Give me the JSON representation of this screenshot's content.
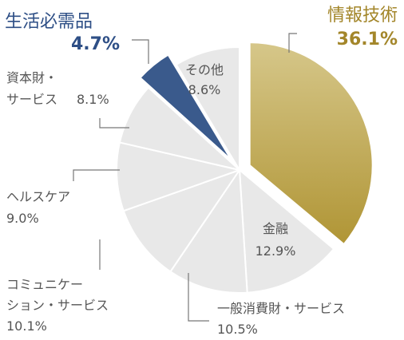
{
  "chart_data": {
    "type": "pie",
    "title": "",
    "legend": "none",
    "slices": [
      {
        "name": "情報技術",
        "label_lines": [
          "情報技術"
        ],
        "value_text": "36.1%",
        "value": 36.1,
        "exploded": true,
        "emphasis": true,
        "color": "#b09535"
      },
      {
        "name": "金融",
        "label_lines": [
          "金融"
        ],
        "value_text": "12.9%",
        "value": 12.9,
        "exploded": false,
        "emphasis": false,
        "color": "#e8e8e8"
      },
      {
        "name": "一般消費財・サービス",
        "label_lines": [
          "一般消費財・サービス"
        ],
        "value_text": "10.5%",
        "value": 10.5,
        "exploded": false,
        "emphasis": false,
        "color": "#e8e8e8"
      },
      {
        "name": "コミュニケーション・サービス",
        "label_lines": [
          "コミュニケー",
          "ション・サービス"
        ],
        "value_text": "10.1%",
        "value": 10.1,
        "exploded": false,
        "emphasis": false,
        "color": "#e8e8e8"
      },
      {
        "name": "ヘルスケア",
        "label_lines": [
          "ヘルスケア"
        ],
        "value_text": "9.0%",
        "value": 9.0,
        "exploded": false,
        "emphasis": false,
        "color": "#e8e8e8"
      },
      {
        "name": "資本財・サービス",
        "label_lines": [
          "資本財・",
          "サービス"
        ],
        "value_text": "8.1%",
        "value": 8.1,
        "exploded": false,
        "emphasis": false,
        "color": "#e8e8e8"
      },
      {
        "name": "生活必需品",
        "label_lines": [
          "生活必需品"
        ],
        "value_text": "4.7%",
        "value": 4.7,
        "exploded": true,
        "emphasis": true,
        "color": "#3a5a8c"
      },
      {
        "name": "その他",
        "label_lines": [
          "その他"
        ],
        "value_text": "8.6%",
        "value": 8.6,
        "exploded": false,
        "emphasis": false,
        "color": "#e8e8e8"
      }
    ],
    "colors": {
      "highlight_gold": "#b09535",
      "highlight_gold_text": "#a3862a",
      "highlight_navy": "#3a5a8c",
      "highlight_navy_text": "#2e4f86",
      "other_fill": "#e8e8e8",
      "label_text": "#555555",
      "leader_line": "#777777"
    }
  }
}
